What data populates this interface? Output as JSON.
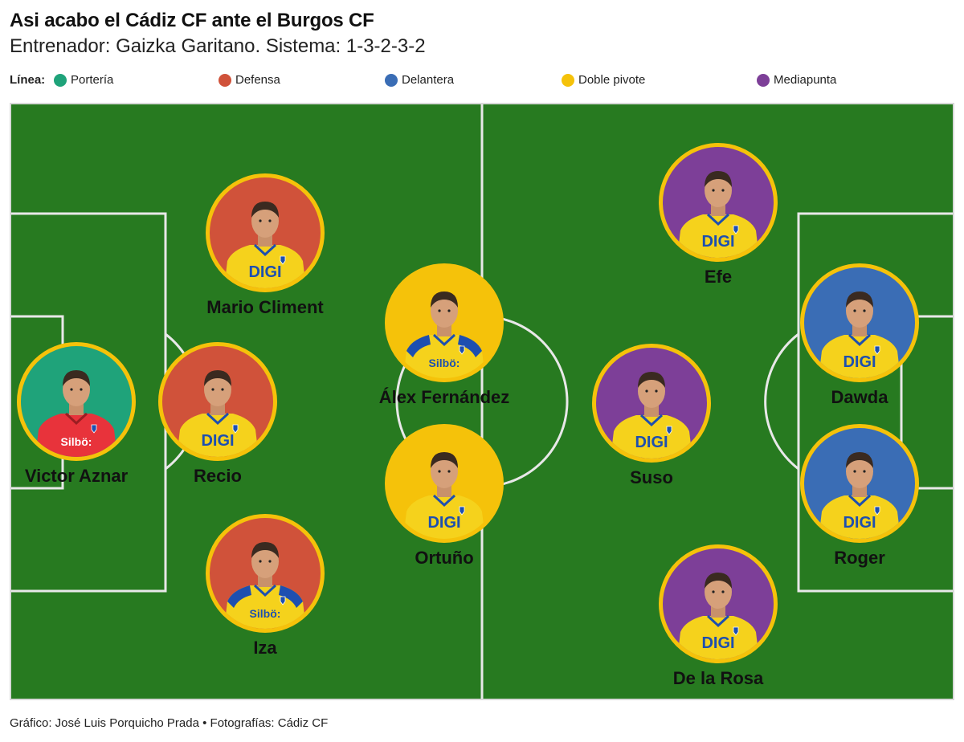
{
  "title": "Asi acabo el Cádiz CF ante el Burgos CF",
  "subtitle": "Entrenador: Gaizka Garitano. Sistema: 1-3-2-3-2",
  "legend": {
    "label": "Línea:",
    "items": [
      {
        "label": "Portería",
        "color": "#1fa37a"
      },
      {
        "label": "Defensa",
        "color": "#d0523a"
      },
      {
        "label": "Delantera",
        "color": "#3a6db5"
      },
      {
        "label": "Doble pivote",
        "color": "#f5c20a"
      },
      {
        "label": "Mediapunta",
        "color": "#7d3f98"
      }
    ]
  },
  "players": [
    {
      "name": "Victor Aznar",
      "line": "Portería",
      "color": "#1fa37a",
      "kit": "goalkeeper",
      "sponsor": "Silbö:"
    },
    {
      "name": "Mario Climent",
      "line": "Defensa",
      "color": "#d0523a",
      "kit": "home",
      "sponsor": "DIGI"
    },
    {
      "name": "Recio",
      "line": "Defensa",
      "color": "#d0523a",
      "kit": "home",
      "sponsor": "DIGI"
    },
    {
      "name": "Iza",
      "line": "Defensa",
      "color": "#d0523a",
      "kit": "home-blue",
      "sponsor": "Silbö:"
    },
    {
      "name": "Álex Fernández",
      "line": "Doble pivote",
      "color": "#f5c20a",
      "kit": "home-blue",
      "sponsor": "Silbö:"
    },
    {
      "name": "Ortuño",
      "line": "Doble pivote",
      "color": "#f5c20a",
      "kit": "home",
      "sponsor": "DIGI"
    },
    {
      "name": "Efe",
      "line": "Mediapunta",
      "color": "#7d3f98",
      "kit": "home",
      "sponsor": "DIGI"
    },
    {
      "name": "Suso",
      "line": "Mediapunta",
      "color": "#7d3f98",
      "kit": "home",
      "sponsor": "DIGI"
    },
    {
      "name": "De la Rosa",
      "line": "Mediapunta",
      "color": "#7d3f98",
      "kit": "home",
      "sponsor": "DIGI"
    },
    {
      "name": "Dawda",
      "line": "Delantera",
      "color": "#3a6db5",
      "kit": "home",
      "sponsor": "DIGI"
    },
    {
      "name": "Roger",
      "line": "Delantera",
      "color": "#3a6db5",
      "kit": "home",
      "sponsor": "DIGI"
    }
  ],
  "footer": "Gráfico: José Luis Porquicho Prada • Fotografías: Cádiz CF"
}
